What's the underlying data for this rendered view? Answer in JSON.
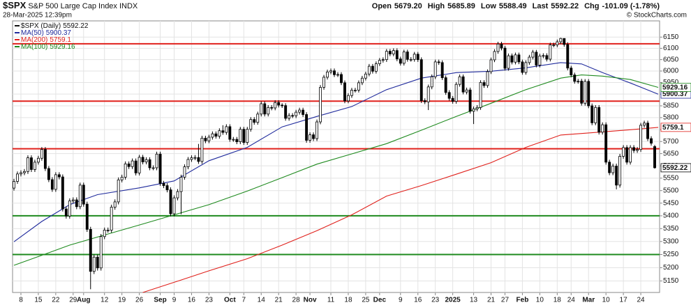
{
  "chart_data": {
    "type": "candlestick",
    "title": "$SPX",
    "subtitle": "S&P 500 Large Cap Index INDX",
    "date": "28-Mar-2025 12:39pm",
    "credit": "© StockCharts.com",
    "quote": [
      {
        "label": "Open",
        "value": "5679.20"
      },
      {
        "label": "High",
        "value": "5685.89"
      },
      {
        "label": "Low",
        "value": "5588.49"
      },
      {
        "label": "Last",
        "value": "5592.22"
      },
      {
        "label": "Chg",
        "value": "-101.09 (-1.78%)"
      }
    ],
    "series_name": "$SPX (Daily)",
    "log_scale": true,
    "grid": true,
    "ylim": [
      5107,
      6223
    ],
    "yticks": [
      5150,
      5200,
      5250,
      5300,
      5350,
      5400,
      5450,
      5500,
      5550,
      5600,
      5650,
      5700,
      5750,
      5800,
      5850,
      5900,
      5950,
      6000,
      6050,
      6100,
      6150
    ],
    "xlim": [
      -0.4,
      185.4
    ],
    "xticks": [
      {
        "value": 2,
        "label": "8"
      },
      {
        "value": 7,
        "label": "15"
      },
      {
        "value": 12,
        "label": "22"
      },
      {
        "value": 17,
        "label": "29"
      },
      {
        "value": 20,
        "label": "Aug"
      },
      {
        "value": 26,
        "label": "12"
      },
      {
        "value": 31,
        "label": "19"
      },
      {
        "value": 36,
        "label": "26"
      },
      {
        "value": 42,
        "label": "Sep"
      },
      {
        "value": 46,
        "label": "9"
      },
      {
        "value": 51,
        "label": "16"
      },
      {
        "value": 56,
        "label": "23"
      },
      {
        "value": 62,
        "label": "Oct"
      },
      {
        "value": 66,
        "label": "7"
      },
      {
        "value": 71,
        "label": "14"
      },
      {
        "value": 76,
        "label": "21"
      },
      {
        "value": 81,
        "label": "28"
      },
      {
        "value": 85,
        "label": "Nov"
      },
      {
        "value": 91,
        "label": "11"
      },
      {
        "value": 96,
        "label": "18"
      },
      {
        "value": 101,
        "label": "25"
      },
      {
        "value": 105,
        "label": "Dec"
      },
      {
        "value": 111,
        "label": "9"
      },
      {
        "value": 116,
        "label": "16"
      },
      {
        "value": 121,
        "label": "23"
      },
      {
        "value": 126,
        "label": "2025"
      },
      {
        "value": 132,
        "label": "13"
      },
      {
        "value": 137,
        "label": "21"
      },
      {
        "value": 141,
        "label": "27"
      },
      {
        "value": 146,
        "label": "Feb"
      },
      {
        "value": 151,
        "label": "10"
      },
      {
        "value": 156,
        "label": "18"
      },
      {
        "value": 160,
        "label": "24"
      },
      {
        "value": 165,
        "label": "Mar"
      },
      {
        "value": 170,
        "label": "10"
      },
      {
        "value": 175,
        "label": "17"
      },
      {
        "value": 180,
        "label": "24"
      }
    ],
    "color": "#000000",
    "open": [
      5510,
      5537,
      5567,
      5572,
      5577,
      5633,
      5585,
      5615,
      5631,
      5667,
      5589,
      5544,
      5505,
      5564,
      5555,
      5427,
      5399,
      5459,
      5463,
      5436,
      5522,
      5446,
      5347,
      5186,
      5240,
      5199,
      5319,
      5344,
      5344,
      5434,
      5455,
      5543,
      5554,
      5608,
      5597,
      5620,
      5571,
      5635,
      5616,
      5625,
      5592,
      5592,
      5648,
      5529,
      5520,
      5503,
      5408,
      5471,
      5496,
      5554,
      5596,
      5626,
      5633,
      5634,
      5618,
      5714,
      5703,
      5718,
      5732,
      5722,
      5745,
      5738,
      5762,
      5709,
      5709,
      5699,
      5751,
      5696,
      5751,
      5792,
      5780,
      5815,
      5859,
      5815,
      5843,
      5841,
      5864,
      5853,
      5851,
      5797,
      5809,
      5808,
      5823,
      5832,
      5813,
      5705,
      5728,
      5712,
      5782,
      5929,
      5973,
      5996,
      6001,
      5984,
      5985,
      5949,
      5871,
      5894,
      5917,
      5917,
      5949,
      5969,
      5987,
      6021,
      5999,
      6032,
      6047,
      6050,
      6087,
      6075,
      6090,
      6053,
      6034,
      6084,
      6051,
      6051,
      6074,
      6050,
      5872,
      5867,
      5931,
      5975,
      6040,
      6037,
      5971,
      5907,
      5882,
      5869,
      5942,
      5975,
      5909,
      5918,
      5827,
      5837,
      5843,
      5950,
      5937,
      5997,
      6049,
      6086,
      6119,
      6101,
      6012,
      6067,
      6039,
      6071,
      6040,
      5994,
      6037,
      6061,
      6083,
      6026,
      6066,
      6068,
      6052,
      6115,
      6115,
      6129,
      6144,
      6117,
      6013,
      5983,
      5955,
      5956,
      5861,
      5955,
      5850,
      5778,
      5843,
      5739,
      5770,
      5615,
      5572,
      5599,
      5522,
      5639,
      5675,
      5615,
      5675,
      5663,
      5667,
      5768,
      5777,
      5712,
      5679.2
    ],
    "high": [
      5547,
      5577,
      5582,
      5587,
      5643,
      5643,
      5625,
      5641,
      5677,
      5677,
      5599,
      5554,
      5574,
      5574,
      5565,
      5437,
      5469,
      5473,
      5473,
      5532,
      5532,
      5456,
      5357,
      5250,
      5250,
      5329,
      5354,
      5354,
      5444,
      5465,
      5553,
      5564,
      5618,
      5618,
      5630,
      5630,
      5645,
      5645,
      5635,
      5635,
      5602,
      5658,
      5658,
      5539,
      5530,
      5513,
      5481,
      5506,
      5564,
      5606,
      5636,
      5643,
      5644,
      5690,
      5724,
      5724,
      5728,
      5742,
      5742,
      5755,
      5768,
      5772,
      5772,
      5719,
      5719,
      5761,
      5761,
      5761,
      5802,
      5802,
      5825,
      5869,
      5869,
      5853,
      5853,
      5874,
      5874,
      5861,
      5861,
      5819,
      5819,
      5833,
      5842,
      5842,
      5823,
      5738,
      5738,
      5792,
      5939,
      5983,
      6006,
      6011,
      6011,
      5995,
      5995,
      5959,
      5904,
      5927,
      5927,
      5959,
      5979,
      5997,
      6031,
      6031,
      6042,
      6057,
      6060,
      6097,
      6097,
      6100,
      6100,
      6063,
      6094,
      6094,
      6061,
      6084,
      6084,
      6060,
      5882,
      5941,
      5985,
      6050,
      6050,
      6047,
      5981,
      5917,
      5892,
      5952,
      5985,
      5985,
      5928,
      5928,
      5847,
      5853,
      5960,
      5960,
      6007,
      6059,
      6096,
      6129,
      6129,
      6111,
      6077,
      6077,
      6081,
      6081,
      6050,
      6047,
      6071,
      6093,
      6093,
      6076,
      6078,
      6078,
      6125,
      6125,
      6139,
      6147,
      6140,
      6127,
      6023,
      5993,
      5966,
      5966,
      5965,
      5965,
      5860,
      5853,
      5853,
      5780,
      5780,
      5625,
      5609,
      5609,
      5649,
      5685,
      5685,
      5685,
      5685,
      5677,
      5778,
      5787,
      5787,
      5722,
      5685.89
    ],
    "low": [
      5500,
      5527,
      5557,
      5562,
      5567,
      5575,
      5575,
      5605,
      5621,
      5579,
      5534,
      5495,
      5495,
      5545,
      5417,
      5389,
      5389,
      5449,
      5426,
      5426,
      5436,
      5337,
      5119,
      5176,
      5189,
      5189,
      5309,
      5334,
      5334,
      5424,
      5445,
      5533,
      5544,
      5587,
      5587,
      5561,
      5561,
      5606,
      5606,
      5582,
      5582,
      5582,
      5519,
      5510,
      5493,
      5398,
      5398,
      5461,
      5406,
      5544,
      5586,
      5616,
      5623,
      5608,
      5608,
      5693,
      5693,
      5708,
      5712,
      5712,
      5728,
      5728,
      5699,
      5699,
      5689,
      5689,
      5686,
      5686,
      5741,
      5770,
      5770,
      5805,
      5805,
      5805,
      5831,
      5831,
      5843,
      5841,
      5787,
      5787,
      5798,
      5798,
      5813,
      5803,
      5695,
      5695,
      5702,
      5702,
      5772,
      5919,
      5963,
      5986,
      5974,
      5974,
      5939,
      5861,
      5861,
      5884,
      5907,
      5907,
      5939,
      5959,
      5977,
      5989,
      5989,
      6022,
      6037,
      6040,
      6065,
      6065,
      6043,
      6024,
      6024,
      6041,
      6041,
      6041,
      6040,
      5862,
      5857,
      5832,
      5921,
      5965,
      6027,
      5961,
      5897,
      5872,
      5859,
      5859,
      5932,
      5899,
      5899,
      5817,
      5773,
      5827,
      5833,
      5927,
      5927,
      5987,
      6039,
      6076,
      6091,
      6002,
      6002,
      6029,
      6029,
      6030,
      5984,
      5984,
      6027,
      6051,
      6016,
      6016,
      6056,
      6042,
      6042,
      6105,
      6105,
      6119,
      6107,
      6003,
      5973,
      5945,
      5945,
      5851,
      5851,
      5840,
      5768,
      5768,
      5729,
      5729,
      5605,
      5562,
      5562,
      5505,
      5512,
      5629,
      5605,
      5605,
      5653,
      5653,
      5657,
      5758,
      5702,
      5683,
      5588.49
    ],
    "close": [
      5537,
      5567,
      5572,
      5577,
      5633,
      5585,
      5615,
      5631,
      5667,
      5589,
      5544,
      5505,
      5564,
      5555,
      5427,
      5399,
      5459,
      5463,
      5436,
      5522,
      5446,
      5347,
      5186,
      5240,
      5199,
      5319,
      5344,
      5344,
      5434,
      5455,
      5543,
      5554,
      5608,
      5597,
      5620,
      5571,
      5635,
      5616,
      5625,
      5592,
      5592,
      5648,
      5529,
      5520,
      5503,
      5408,
      5471,
      5496,
      5554,
      5596,
      5626,
      5633,
      5634,
      5618,
      5714,
      5703,
      5718,
      5732,
      5722,
      5745,
      5738,
      5762,
      5709,
      5709,
      5699,
      5751,
      5696,
      5751,
      5792,
      5780,
      5815,
      5859,
      5815,
      5843,
      5841,
      5864,
      5853,
      5851,
      5797,
      5809,
      5808,
      5823,
      5832,
      5813,
      5705,
      5728,
      5712,
      5782,
      5929,
      5973,
      5996,
      6001,
      5984,
      5985,
      5949,
      5871,
      5894,
      5917,
      5917,
      5949,
      5969,
      5987,
      6021,
      5999,
      6032,
      6047,
      6050,
      6087,
      6075,
      6090,
      6053,
      6034,
      6084,
      6051,
      6051,
      6074,
      6050,
      5872,
      5867,
      5931,
      5975,
      6040,
      6037,
      5971,
      5907,
      5882,
      5869,
      5942,
      5975,
      5909,
      5918,
      5827,
      5837,
      5843,
      5950,
      5937,
      5997,
      6049,
      6086,
      6119,
      6101,
      6012,
      6067,
      6039,
      6071,
      6040,
      5994,
      6037,
      6061,
      6083,
      6026,
      6066,
      6068,
      6052,
      6115,
      6115,
      6129,
      6144,
      6117,
      6013,
      5983,
      5955,
      5956,
      5861,
      5955,
      5850,
      5778,
      5843,
      5739,
      5770,
      5615,
      5572,
      5599,
      5522,
      5639,
      5675,
      5615,
      5675,
      5663,
      5667,
      5768,
      5777,
      5712,
      5693,
      5592.22
    ],
    "moving_averages": [
      {
        "name": "MA(50)",
        "last": 5900.37,
        "color": "#1f2a9c",
        "x": [
          0,
          8,
          16,
          24,
          36,
          46,
          56,
          67,
          77,
          87,
          97,
          107,
          117,
          127,
          137,
          147,
          157,
          163,
          169,
          177,
          185
        ],
        "values": [
          5299,
          5378,
          5444,
          5484,
          5511,
          5539,
          5621,
          5676,
          5761,
          5805,
          5847,
          5919,
          5969,
          5993,
          5999,
          6014,
          6037,
          6031,
          5993,
          5948,
          5900
        ]
      },
      {
        "name": "MA(200)",
        "last": 5759.1,
        "color": "#e0201b",
        "x": [
          37,
          46,
          56,
          67,
          77,
          87,
          97,
          107,
          117,
          127,
          137,
          147,
          157,
          169,
          177,
          185
        ],
        "values": [
          5107,
          5145,
          5188,
          5234,
          5286,
          5342,
          5404,
          5478,
          5520,
          5566,
          5613,
          5676,
          5727,
          5740,
          5749,
          5759
        ]
      },
      {
        "name": "MA(100)",
        "last": 5929.16,
        "color": "#1e8a1e",
        "x": [
          0,
          8,
          16,
          26,
          36,
          46,
          56,
          67,
          77,
          87,
          97,
          107,
          117,
          127,
          137,
          147,
          157,
          163,
          169,
          177,
          185
        ],
        "values": [
          5209,
          5247,
          5286,
          5325,
          5364,
          5404,
          5444,
          5498,
          5552,
          5607,
          5649,
          5691,
          5747,
          5805,
          5861,
          5919,
          5969,
          5983,
          5978,
          5963,
          5929
        ]
      }
    ],
    "levels": [
      {
        "value": 6120,
        "color": "#e0201b"
      },
      {
        "value": 5870,
        "color": "#e0201b"
      },
      {
        "value": 5670,
        "color": "#e0201b"
      },
      {
        "value": 5400,
        "color": "#1e8a1e"
      },
      {
        "value": 5250,
        "color": "#1e8a1e"
      }
    ]
  }
}
